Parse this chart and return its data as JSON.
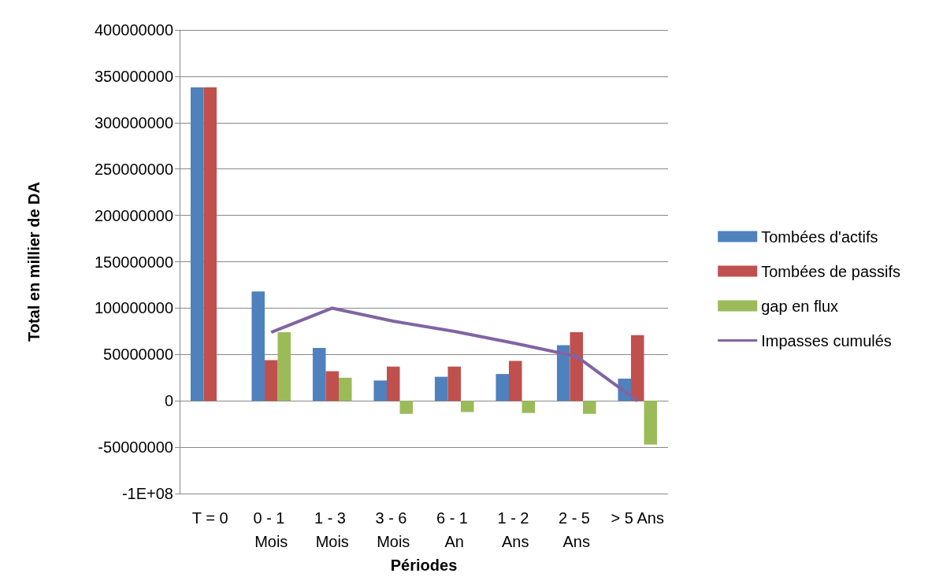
{
  "chart_data": {
    "type": "bar",
    "xlabel": "Périodes",
    "ylabel": "Total en millier de DA",
    "categories": [
      "T = 0",
      "0 - 1 Mois",
      "1 - 3 Mois",
      "3 - 6 Mois",
      "6 - 1 An",
      "1 - 2 Ans",
      "2 - 5 Ans",
      "> 5 Ans"
    ],
    "series": [
      {
        "name": "Tombées d'actifs",
        "color": "#4f81bd",
        "values": [
          338000000,
          118000000,
          57000000,
          22000000,
          26000000,
          29000000,
          60000000,
          24000000
        ]
      },
      {
        "name": "Tombées de passifs",
        "color": "#c0504d",
        "values": [
          338000000,
          44000000,
          32000000,
          37000000,
          37000000,
          43000000,
          74000000,
          71000000
        ]
      },
      {
        "name": "gap en flux",
        "color": "#9bbb59",
        "values": [
          0,
          74000000,
          25000000,
          -14000000,
          -12000000,
          -13000000,
          -14000000,
          -47000000
        ]
      },
      {
        "name": "Impasses cumulés",
        "type": "line",
        "color": "#8064a2",
        "marker": "none",
        "values": [
          null,
          74000000,
          100000000,
          86000000,
          75000000,
          62000000,
          48000000,
          0
        ]
      }
    ],
    "ylim": [
      -100000000,
      400000000
    ],
    "yticks": [
      {
        "value": -100000000,
        "label": "-1E+08"
      },
      -50000000,
      0,
      50000000,
      100000000,
      150000000,
      200000000,
      250000000,
      300000000,
      350000000,
      400000000
    ],
    "grid": "y",
    "legend": "right"
  }
}
